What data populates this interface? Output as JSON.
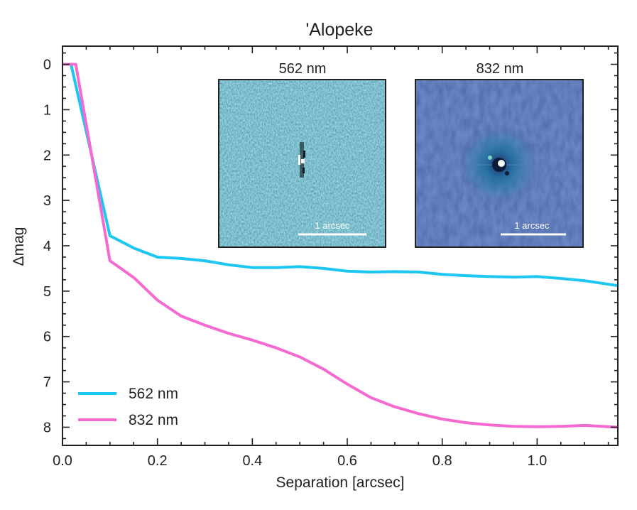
{
  "chart_data": {
    "type": "line",
    "title": "'Alopeke",
    "xlabel": "Separation [arcsec]",
    "ylabel": "Δmag",
    "xlim": [
      0.0,
      1.17
    ],
    "ylim": [
      8.4,
      -0.4
    ],
    "y_inverted": true,
    "xticks": [
      0.0,
      0.2,
      0.4,
      0.6,
      0.8,
      1.0
    ],
    "xtick_labels": [
      "0.0",
      "0.2",
      "0.4",
      "0.6",
      "0.8",
      "1.0"
    ],
    "yticks": [
      0,
      1,
      2,
      3,
      4,
      5,
      6,
      7,
      8
    ],
    "ytick_labels": [
      "0",
      "1",
      "2",
      "3",
      "4",
      "5",
      "6",
      "7",
      "8"
    ],
    "grid": false,
    "legend_position": "bottom-left",
    "series": [
      {
        "name": "562 nm",
        "color": "#1cc6f0",
        "x": [
          0.0,
          0.018,
          0.1,
          0.15,
          0.2,
          0.25,
          0.3,
          0.35,
          0.4,
          0.45,
          0.5,
          0.55,
          0.6,
          0.65,
          0.7,
          0.75,
          0.8,
          0.85,
          0.9,
          0.95,
          1.0,
          1.05,
          1.1,
          1.17
        ],
        "y": [
          0.0,
          0.0,
          3.78,
          4.05,
          4.25,
          4.28,
          4.33,
          4.42,
          4.48,
          4.48,
          4.46,
          4.5,
          4.56,
          4.58,
          4.57,
          4.58,
          4.63,
          4.66,
          4.68,
          4.69,
          4.68,
          4.72,
          4.77,
          4.88
        ]
      },
      {
        "name": "832 nm",
        "color": "#f46ad0",
        "x": [
          0.0,
          0.028,
          0.1,
          0.15,
          0.2,
          0.25,
          0.3,
          0.35,
          0.4,
          0.45,
          0.5,
          0.55,
          0.6,
          0.65,
          0.7,
          0.75,
          0.8,
          0.85,
          0.9,
          0.95,
          1.0,
          1.05,
          1.1,
          1.17
        ],
        "y": [
          0.0,
          0.0,
          4.33,
          4.7,
          5.2,
          5.55,
          5.75,
          5.93,
          6.08,
          6.25,
          6.45,
          6.72,
          7.05,
          7.35,
          7.55,
          7.7,
          7.82,
          7.9,
          7.95,
          7.98,
          7.99,
          7.98,
          7.96,
          8.0
        ]
      }
    ]
  },
  "insets": [
    {
      "title": "562 nm",
      "scale_label": "1 arcsec",
      "background": "#3d8aa8"
    },
    {
      "title": "832 nm",
      "scale_label": "1 arcsec",
      "background": "#34509a"
    }
  ]
}
